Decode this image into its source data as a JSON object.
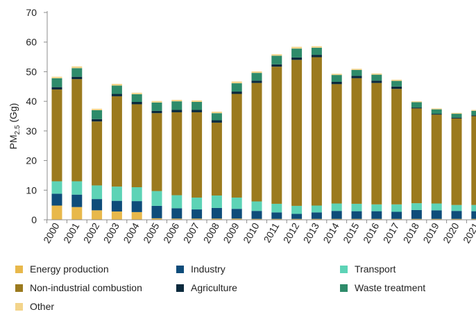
{
  "chart_data": {
    "type": "bar",
    "stacked": true,
    "ylabel": "PM",
    "ylabel_sub": "2.5",
    "ylabel_unit": " (Gg)",
    "ylim": [
      0,
      70
    ],
    "yticks": [
      0,
      10,
      20,
      30,
      40,
      50,
      60,
      70
    ],
    "grid": false,
    "legend_position": "bottom",
    "categories": [
      "2000",
      "2001",
      "2002",
      "2003",
      "2004",
      "2005",
      "2006",
      "2007",
      "2008",
      "2009",
      "2010",
      "2011",
      "2012",
      "2013",
      "2014",
      "2015",
      "2016",
      "2017",
      "2018",
      "2019",
      "2020",
      "2021"
    ],
    "series": [
      {
        "name": "Energy production",
        "color": "#E8B84B",
        "values": [
          4.8,
          4.3,
          3.2,
          2.8,
          2.6,
          0.5,
          0.4,
          0.4,
          0.4,
          0.4,
          0.3,
          0.3,
          0.3,
          0.3,
          0.3,
          0.3,
          0.3,
          0.3,
          0.3,
          0.3,
          0.3,
          0.3
        ]
      },
      {
        "name": "Industry",
        "color": "#0E4C7A",
        "values": [
          4.0,
          4.2,
          3.8,
          3.6,
          3.7,
          4.2,
          3.5,
          3.1,
          3.6,
          3.3,
          2.7,
          2.2,
          1.7,
          2.2,
          2.7,
          2.6,
          2.6,
          2.4,
          3.0,
          2.9,
          2.7,
          2.6
        ]
      },
      {
        "name": "Transport",
        "color": "#5DD3B6",
        "values": [
          4.2,
          4.5,
          4.6,
          4.8,
          4.7,
          5.0,
          4.4,
          4.0,
          4.2,
          3.8,
          3.2,
          2.9,
          2.7,
          2.3,
          2.5,
          2.5,
          2.3,
          2.5,
          2.3,
          2.3,
          2.0,
          2.1
        ]
      },
      {
        "name": "Non-industrial combustion",
        "color": "#9B7A1E",
        "values": [
          31.0,
          34.5,
          21.6,
          30.5,
          28.0,
          26.3,
          28.0,
          28.8,
          24.6,
          35.0,
          40.0,
          46.3,
          49.3,
          50.1,
          40.3,
          42.4,
          41.0,
          39.0,
          32.0,
          30.0,
          29.2,
          30.0
        ]
      },
      {
        "name": "Agriculture",
        "color": "#0B2A3D",
        "values": [
          0.8,
          0.8,
          0.8,
          0.8,
          0.8,
          0.8,
          0.8,
          0.8,
          0.8,
          0.8,
          0.8,
          0.8,
          0.8,
          0.8,
          0.8,
          0.8,
          0.8,
          0.8,
          0.3,
          0.3,
          0.3,
          0.3
        ]
      },
      {
        "name": "Waste treatment",
        "color": "#2E8B6A",
        "values": [
          3.0,
          2.9,
          3.0,
          2.8,
          2.6,
          2.8,
          2.9,
          2.7,
          2.4,
          2.8,
          2.6,
          2.9,
          3.0,
          2.4,
          2.3,
          2.0,
          2.0,
          1.9,
          1.8,
          1.5,
          1.3,
          1.5
        ]
      },
      {
        "name": "Other",
        "color": "#F3D48B",
        "values": [
          0.5,
          0.6,
          0.5,
          0.6,
          0.5,
          0.5,
          0.5,
          0.5,
          0.5,
          0.6,
          0.5,
          0.5,
          0.6,
          0.5,
          0.4,
          0.4,
          0.4,
          0.4,
          0.3,
          0.3,
          0.3,
          0.3
        ]
      }
    ]
  }
}
